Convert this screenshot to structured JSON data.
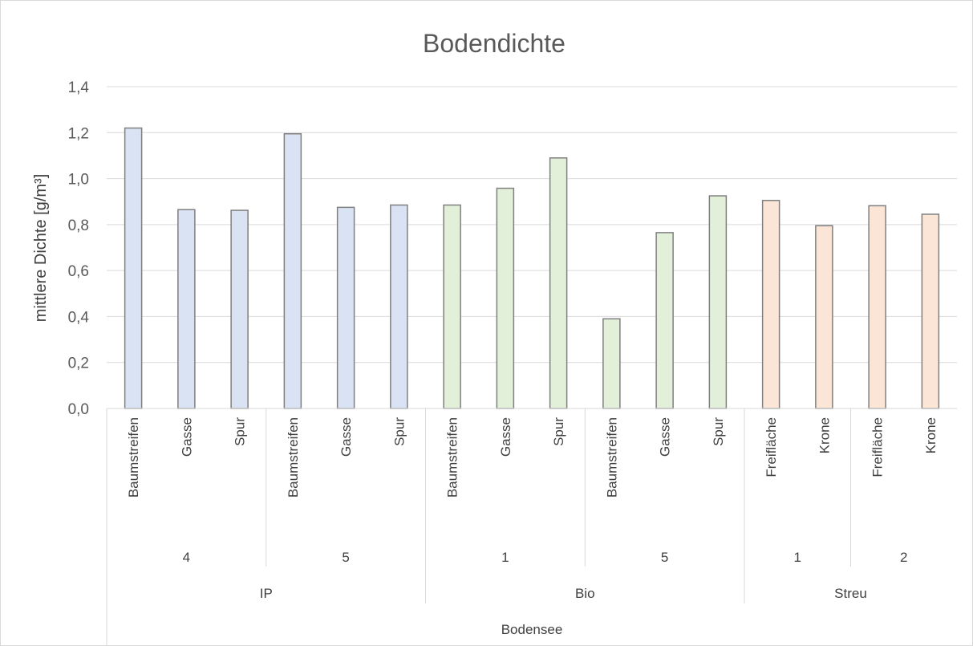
{
  "chart_data": {
    "type": "bar",
    "title": "Bodendichte",
    "ylabel": "mittlere Dichte [g/m³]",
    "xlabel": "",
    "ylim": [
      0,
      1.4
    ],
    "yticks": [
      "0,0",
      "0,2",
      "0,4",
      "0,6",
      "0,8",
      "1,0",
      "1,2",
      "1,4"
    ],
    "grid": true,
    "categories": [
      "Baumstreifen",
      "Gasse",
      "Spur",
      "Baumstreifen",
      "Gasse",
      "Spur",
      "Baumstreifen",
      "Gasse",
      "Spur",
      "Baumstreifen",
      "Gasse",
      "Spur",
      "Freifläche",
      "Krone",
      "Freifläche",
      "Krone"
    ],
    "values": [
      1.22,
      0.865,
      0.862,
      1.195,
      0.875,
      0.885,
      0.885,
      0.958,
      1.09,
      0.39,
      0.765,
      0.925,
      0.905,
      0.795,
      0.882,
      0.845
    ],
    "bar_colors": [
      "#dae3f3",
      "#dae3f3",
      "#dae3f3",
      "#dae3f3",
      "#dae3f3",
      "#dae3f3",
      "#e2f0d9",
      "#e2f0d9",
      "#e2f0d9",
      "#e2f0d9",
      "#e2f0d9",
      "#e2f0d9",
      "#fbe5d6",
      "#fbe5d6",
      "#fbe5d6",
      "#fbe5d6"
    ],
    "bar_stroke": "#7f7f7f",
    "level2": [
      {
        "label": "4",
        "span": 3
      },
      {
        "label": "5",
        "span": 3
      },
      {
        "label": "1",
        "span": 3
      },
      {
        "label": "5",
        "span": 3
      },
      {
        "label": "1",
        "span": 2
      },
      {
        "label": "2",
        "span": 2
      }
    ],
    "level3": [
      {
        "label": "IP",
        "span": 6
      },
      {
        "label": "Bio",
        "span": 6
      },
      {
        "label": "Streu",
        "span": 4
      }
    ],
    "level4": [
      {
        "label": "Bodensee",
        "span": 16
      }
    ]
  }
}
